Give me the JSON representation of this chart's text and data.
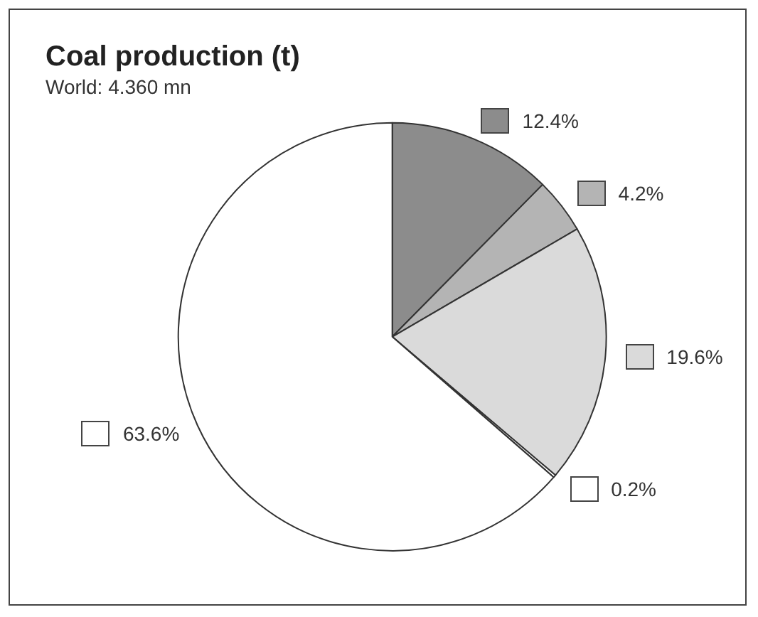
{
  "chart_data": {
    "type": "pie",
    "title": "Coal production (t)",
    "subtitle": "World: 4.360 mn",
    "categories": [
      null,
      null,
      null,
      null,
      null
    ],
    "values": [
      12.4,
      4.2,
      19.6,
      0.2,
      63.6
    ],
    "value_labels": [
      "12.4%",
      "4.2%",
      "19.6%",
      "0.2%",
      "63.6%"
    ],
    "colors": [
      "#8c8c8c",
      "#b4b4b4",
      "#dadada",
      "#ffffff",
      "#ffffff"
    ]
  }
}
